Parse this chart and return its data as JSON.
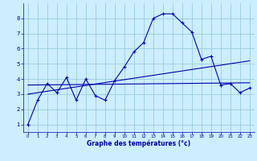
{
  "xlabel": "Graphe des températures (°c)",
  "bg_color": "#cceeff",
  "grid_color": "#99ccdd",
  "line_color": "#0000aa",
  "xlim": [
    -0.5,
    23.5
  ],
  "ylim": [
    0.5,
    9.0
  ],
  "xticks": [
    0,
    1,
    2,
    3,
    4,
    5,
    6,
    7,
    8,
    9,
    10,
    11,
    12,
    13,
    14,
    15,
    16,
    17,
    18,
    19,
    20,
    21,
    22,
    23
  ],
  "yticks": [
    1,
    2,
    3,
    4,
    5,
    6,
    7,
    8
  ],
  "curve1_x": [
    0,
    1,
    2,
    3,
    4,
    5,
    6,
    7,
    8,
    9,
    10,
    11,
    12,
    13,
    14,
    15,
    16,
    17,
    18,
    19,
    20,
    21,
    22,
    23
  ],
  "curve1_y": [
    1.0,
    2.6,
    3.7,
    3.1,
    4.1,
    2.6,
    4.0,
    2.9,
    2.6,
    3.9,
    4.8,
    5.8,
    6.4,
    8.0,
    8.3,
    8.3,
    7.7,
    7.1,
    5.3,
    5.5,
    3.6,
    3.7,
    3.1,
    3.4
  ],
  "curve2_x": [
    0,
    23
  ],
  "curve2_y": [
    3.6,
    3.75
  ],
  "curve3_x": [
    0,
    23
  ],
  "curve3_y": [
    3.0,
    5.2
  ]
}
